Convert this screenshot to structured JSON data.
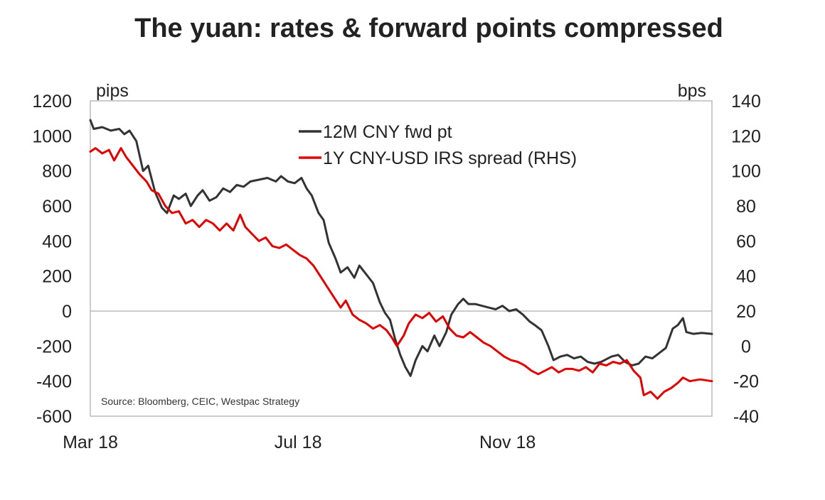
{
  "chart_data": {
    "type": "line",
    "title": "The yuan: rates & forward points compressed",
    "left_axis": {
      "unit": "pips",
      "ylim": [
        -600,
        1200
      ],
      "ticks": [
        "1200",
        "1000",
        "800",
        "600",
        "400",
        "200",
        "0",
        "-200",
        "-400",
        "-600"
      ],
      "tick_values": [
        1200,
        1000,
        800,
        600,
        400,
        200,
        0,
        -200,
        -400,
        -600
      ]
    },
    "right_axis": {
      "unit": "bps",
      "ylim": [
        -40,
        140
      ],
      "ticks": [
        "140",
        "120",
        "100",
        "80",
        "60",
        "40",
        "20",
        "0",
        "-20",
        "-40"
      ],
      "tick_values": [
        140,
        120,
        100,
        80,
        60,
        40,
        20,
        0,
        -20,
        -40
      ]
    },
    "x_axis": {
      "range": [
        "2018-03-01",
        "2019-03-01"
      ],
      "ticks": [
        {
          "label": "Mar 18",
          "date": "2018-03-01"
        },
        {
          "label": "Jul 18",
          "date": "2018-07-01"
        },
        {
          "label": "Nov 18",
          "date": "2018-11-01"
        }
      ]
    },
    "zero_line": true,
    "legend_position": "top-center",
    "source": "Source: Bloomberg, CEIC, Westpac Strategy",
    "series": [
      {
        "name": "12M CNY fwd pt",
        "axis": "left",
        "color": "#333333",
        "points": [
          [
            "2018-03-01",
            1090
          ],
          [
            "2018-03-03",
            1040
          ],
          [
            "2018-03-08",
            1050
          ],
          [
            "2018-03-13",
            1030
          ],
          [
            "2018-03-18",
            1040
          ],
          [
            "2018-03-21",
            1010
          ],
          [
            "2018-03-24",
            1030
          ],
          [
            "2018-03-28",
            970
          ],
          [
            "2018-04-01",
            800
          ],
          [
            "2018-04-04",
            830
          ],
          [
            "2018-04-08",
            680
          ],
          [
            "2018-04-12",
            590
          ],
          [
            "2018-04-15",
            560
          ],
          [
            "2018-04-19",
            660
          ],
          [
            "2018-04-22",
            640
          ],
          [
            "2018-04-26",
            670
          ],
          [
            "2018-04-29",
            600
          ],
          [
            "2018-05-03",
            660
          ],
          [
            "2018-05-06",
            690
          ],
          [
            "2018-05-10",
            630
          ],
          [
            "2018-05-14",
            650
          ],
          [
            "2018-05-18",
            700
          ],
          [
            "2018-05-22",
            680
          ],
          [
            "2018-05-26",
            720
          ],
          [
            "2018-05-30",
            710
          ],
          [
            "2018-06-03",
            740
          ],
          [
            "2018-06-08",
            750
          ],
          [
            "2018-06-13",
            760
          ],
          [
            "2018-06-18",
            740
          ],
          [
            "2018-06-21",
            770
          ],
          [
            "2018-06-25",
            740
          ],
          [
            "2018-06-29",
            730
          ],
          [
            "2018-07-03",
            760
          ],
          [
            "2018-07-06",
            700
          ],
          [
            "2018-07-09",
            660
          ],
          [
            "2018-07-13",
            560
          ],
          [
            "2018-07-16",
            520
          ],
          [
            "2018-07-19",
            390
          ],
          [
            "2018-07-23",
            300
          ],
          [
            "2018-07-26",
            220
          ],
          [
            "2018-07-30",
            250
          ],
          [
            "2018-08-03",
            190
          ],
          [
            "2018-08-06",
            260
          ],
          [
            "2018-08-10",
            210
          ],
          [
            "2018-08-14",
            160
          ],
          [
            "2018-08-18",
            50
          ],
          [
            "2018-08-21",
            -10
          ],
          [
            "2018-08-24",
            -50
          ],
          [
            "2018-08-27",
            -160
          ],
          [
            "2018-08-30",
            -250
          ],
          [
            "2018-09-02",
            -320
          ],
          [
            "2018-09-05",
            -370
          ],
          [
            "2018-09-08",
            -280
          ],
          [
            "2018-09-12",
            -200
          ],
          [
            "2018-09-15",
            -230
          ],
          [
            "2018-09-19",
            -140
          ],
          [
            "2018-09-22",
            -200
          ],
          [
            "2018-09-26",
            -120
          ],
          [
            "2018-09-29",
            -20
          ],
          [
            "2018-10-03",
            40
          ],
          [
            "2018-10-06",
            70
          ],
          [
            "2018-10-09",
            40
          ],
          [
            "2018-10-13",
            40
          ],
          [
            "2018-10-17",
            30
          ],
          [
            "2018-10-21",
            20
          ],
          [
            "2018-10-25",
            10
          ],
          [
            "2018-10-29",
            30
          ],
          [
            "2018-11-02",
            0
          ],
          [
            "2018-11-06",
            10
          ],
          [
            "2018-11-10",
            -20
          ],
          [
            "2018-11-14",
            -60
          ],
          [
            "2018-11-17",
            -80
          ],
          [
            "2018-11-21",
            -110
          ],
          [
            "2018-11-25",
            -200
          ],
          [
            "2018-11-28",
            -280
          ],
          [
            "2018-12-02",
            -260
          ],
          [
            "2018-12-06",
            -250
          ],
          [
            "2018-12-10",
            -270
          ],
          [
            "2018-12-14",
            -260
          ],
          [
            "2018-12-18",
            -290
          ],
          [
            "2018-12-22",
            -300
          ],
          [
            "2018-12-26",
            -290
          ],
          [
            "2019-01-01",
            -260
          ],
          [
            "2019-01-05",
            -250
          ],
          [
            "2019-01-09",
            -290
          ],
          [
            "2019-01-13",
            -310
          ],
          [
            "2019-01-17",
            -300
          ],
          [
            "2019-01-21",
            -260
          ],
          [
            "2019-01-25",
            -270
          ],
          [
            "2019-01-29",
            -240
          ],
          [
            "2019-02-02",
            -210
          ],
          [
            "2019-02-06",
            -100
          ],
          [
            "2019-02-09",
            -80
          ],
          [
            "2019-02-12",
            -40
          ],
          [
            "2019-02-14",
            -120
          ],
          [
            "2019-02-18",
            -130
          ],
          [
            "2019-02-23",
            -125
          ],
          [
            "2019-03-01",
            -130
          ]
        ]
      },
      {
        "name": "1Y CNY-USD IRS spread (RHS)",
        "axis": "right",
        "color": "#e00000",
        "points": [
          [
            "2018-03-01",
            111
          ],
          [
            "2018-03-04",
            113
          ],
          [
            "2018-03-08",
            110
          ],
          [
            "2018-03-12",
            112
          ],
          [
            "2018-03-15",
            106
          ],
          [
            "2018-03-19",
            113
          ],
          [
            "2018-03-22",
            108
          ],
          [
            "2018-03-26",
            103
          ],
          [
            "2018-03-30",
            98
          ],
          [
            "2018-04-03",
            94
          ],
          [
            "2018-04-06",
            89
          ],
          [
            "2018-04-10",
            87
          ],
          [
            "2018-04-14",
            80
          ],
          [
            "2018-04-18",
            76
          ],
          [
            "2018-04-22",
            77
          ],
          [
            "2018-04-26",
            70
          ],
          [
            "2018-04-30",
            72
          ],
          [
            "2018-05-04",
            68
          ],
          [
            "2018-05-08",
            72
          ],
          [
            "2018-05-12",
            70
          ],
          [
            "2018-05-16",
            66
          ],
          [
            "2018-05-20",
            70
          ],
          [
            "2018-05-24",
            66
          ],
          [
            "2018-05-28",
            75
          ],
          [
            "2018-05-31",
            68
          ],
          [
            "2018-06-04",
            64
          ],
          [
            "2018-06-08",
            60
          ],
          [
            "2018-06-12",
            62
          ],
          [
            "2018-06-16",
            57
          ],
          [
            "2018-06-20",
            56
          ],
          [
            "2018-06-24",
            58
          ],
          [
            "2018-06-28",
            55
          ],
          [
            "2018-07-02",
            52
          ],
          [
            "2018-07-06",
            50
          ],
          [
            "2018-07-10",
            46
          ],
          [
            "2018-07-14",
            40
          ],
          [
            "2018-07-18",
            34
          ],
          [
            "2018-07-22",
            28
          ],
          [
            "2018-07-26",
            22
          ],
          [
            "2018-07-29",
            26
          ],
          [
            "2018-08-02",
            18
          ],
          [
            "2018-08-06",
            15
          ],
          [
            "2018-08-10",
            13
          ],
          [
            "2018-08-14",
            10
          ],
          [
            "2018-08-18",
            12
          ],
          [
            "2018-08-22",
            9
          ],
          [
            "2018-08-25",
            5
          ],
          [
            "2018-08-28",
            0
          ],
          [
            "2018-09-01",
            6
          ],
          [
            "2018-09-04",
            13
          ],
          [
            "2018-09-08",
            18
          ],
          [
            "2018-09-12",
            16
          ],
          [
            "2018-09-16",
            19
          ],
          [
            "2018-09-20",
            14
          ],
          [
            "2018-09-24",
            17
          ],
          [
            "2018-09-28",
            10
          ],
          [
            "2018-10-02",
            6
          ],
          [
            "2018-10-06",
            5
          ],
          [
            "2018-10-10",
            8
          ],
          [
            "2018-10-14",
            5
          ],
          [
            "2018-10-18",
            2
          ],
          [
            "2018-10-22",
            0
          ],
          [
            "2018-10-26",
            -3
          ],
          [
            "2018-10-30",
            -6
          ],
          [
            "2018-11-03",
            -8
          ],
          [
            "2018-11-07",
            -9
          ],
          [
            "2018-11-11",
            -11
          ],
          [
            "2018-11-15",
            -14
          ],
          [
            "2018-11-19",
            -16
          ],
          [
            "2018-11-23",
            -14
          ],
          [
            "2018-11-27",
            -12
          ],
          [
            "2018-12-01",
            -15
          ],
          [
            "2018-12-05",
            -13
          ],
          [
            "2018-12-09",
            -13
          ],
          [
            "2018-12-13",
            -14
          ],
          [
            "2018-12-17",
            -12
          ],
          [
            "2018-12-21",
            -15
          ],
          [
            "2018-12-25",
            -10
          ],
          [
            "2018-12-29",
            -11
          ],
          [
            "2019-01-02",
            -9
          ],
          [
            "2019-01-06",
            -10
          ],
          [
            "2019-01-10",
            -8
          ],
          [
            "2019-01-14",
            -14
          ],
          [
            "2019-01-18",
            -18
          ],
          [
            "2019-01-20",
            -28
          ],
          [
            "2019-01-24",
            -26
          ],
          [
            "2019-01-28",
            -30
          ],
          [
            "2019-02-01",
            -26
          ],
          [
            "2019-02-05",
            -24
          ],
          [
            "2019-02-09",
            -21
          ],
          [
            "2019-02-12",
            -18
          ],
          [
            "2019-02-16",
            -20
          ],
          [
            "2019-02-22",
            -19
          ],
          [
            "2019-03-01",
            -20
          ]
        ]
      }
    ]
  }
}
